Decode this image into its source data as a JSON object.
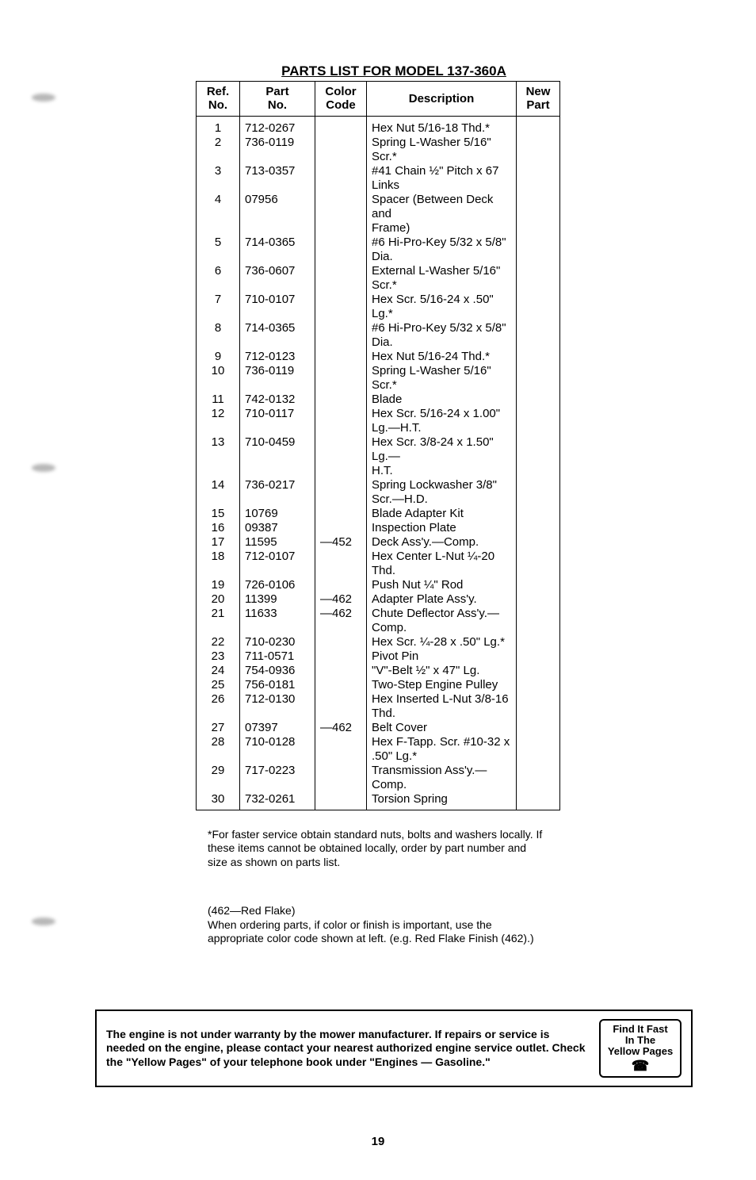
{
  "title": "PARTS LIST FOR MODEL 137-360A",
  "columns": {
    "ref": "Ref.\nNo.",
    "part": "Part\nNo.",
    "color": "Color\nCode",
    "desc": "Description",
    "new": "New\nPart"
  },
  "rows": [
    {
      "ref": "1",
      "part": "712-0267",
      "color": "",
      "desc": "Hex Nut 5/16-18 Thd.*"
    },
    {
      "ref": "2",
      "part": "736-0119",
      "color": "",
      "desc": "Spring L-Washer 5/16\" Scr.*"
    },
    {
      "ref": "3",
      "part": "713-0357",
      "color": "",
      "desc": "#41 Chain ½\" Pitch x 67 Links"
    },
    {
      "ref": "4",
      "part": "07956",
      "color": "",
      "desc": "Spacer (Between Deck and",
      "cont": "Frame)"
    },
    {
      "ref": "5",
      "part": "714-0365",
      "color": "",
      "desc": "#6 Hi-Pro-Key 5/32 x 5/8\"",
      "cont": "Dia."
    },
    {
      "ref": "6",
      "part": "736-0607",
      "color": "",
      "desc": "External L-Washer 5/16\"",
      "cont": "Scr.*"
    },
    {
      "ref": "7",
      "part": "710-0107",
      "color": "",
      "desc": "Hex Scr. 5/16-24 x .50\" Lg.*"
    },
    {
      "ref": "8",
      "part": "714-0365",
      "color": "",
      "desc": "#6 Hi-Pro-Key 5/32 x 5/8\"",
      "cont": "Dia."
    },
    {
      "ref": "9",
      "part": "712-0123",
      "color": "",
      "desc": "Hex Nut 5/16-24 Thd.*"
    },
    {
      "ref": "10",
      "part": "736-0119",
      "color": "",
      "desc": "Spring L-Washer 5/16\" Scr.*"
    },
    {
      "ref": "11",
      "part": "742-0132",
      "color": "",
      "desc": "Blade"
    },
    {
      "ref": "12",
      "part": "710-0117",
      "color": "",
      "desc": "Hex Scr. 5/16-24 x 1.00\"",
      "cont": "Lg.—H.T."
    },
    {
      "ref": "13",
      "part": "710-0459",
      "color": "",
      "desc": "Hex Scr. 3/8-24 x 1.50\" Lg.—",
      "cont": "H.T."
    },
    {
      "ref": "14",
      "part": "736-0217",
      "color": "",
      "desc": "Spring Lockwasher 3/8\"",
      "cont": "Scr.—H.D."
    },
    {
      "ref": "15",
      "part": "10769",
      "color": "",
      "desc": "Blade Adapter Kit"
    },
    {
      "ref": "16",
      "part": "09387",
      "color": "",
      "desc": "Inspection Plate"
    },
    {
      "ref": "17",
      "part": "11595",
      "color": "—452",
      "desc": "Deck Ass'y.—Comp."
    },
    {
      "ref": "18",
      "part": "712-0107",
      "color": "",
      "desc": "Hex Center L-Nut ¼-20 Thd."
    },
    {
      "ref": "19",
      "part": "726-0106",
      "color": "",
      "desc": "Push Nut ¼\" Rod"
    },
    {
      "ref": "20",
      "part": "11399",
      "color": "—462",
      "desc": "Adapter Plate Ass'y."
    },
    {
      "ref": "21",
      "part": "11633",
      "color": "—462",
      "desc": "Chute Deflector Ass'y.—",
      "cont": "Comp."
    },
    {
      "ref": "22",
      "part": "710-0230",
      "color": "",
      "desc": "Hex Scr. ¼-28 x .50\" Lg.*"
    },
    {
      "ref": "23",
      "part": "711-0571",
      "color": "",
      "desc": "Pivot Pin"
    },
    {
      "ref": "24",
      "part": "754-0936",
      "color": "",
      "desc": "\"V\"-Belt ½\" x 47\" Lg."
    },
    {
      "ref": "25",
      "part": "756-0181",
      "color": "",
      "desc": "Two-Step Engine Pulley"
    },
    {
      "ref": "26",
      "part": "712-0130",
      "color": "",
      "desc": "Hex Inserted L-Nut 3/8-16",
      "cont": "Thd."
    },
    {
      "ref": "27",
      "part": "07397",
      "color": "—462",
      "desc": "Belt Cover"
    },
    {
      "ref": "28",
      "part": "710-0128",
      "color": "",
      "desc": "Hex F-Tapp. Scr. #10-32 x",
      "cont": ".50\" Lg.*"
    },
    {
      "ref": "29",
      "part": "717-0223",
      "color": "",
      "desc": "Transmission Ass'y.—Comp."
    },
    {
      "ref": "30",
      "part": "732-0261",
      "color": "",
      "desc": "Torsion Spring"
    }
  ],
  "footnote1": "*For faster service obtain standard nuts, bolts and washers locally. If these items cannot be obtained locally, order by part number and size as shown on parts list.",
  "footnote2a": "(462—Red Flake)",
  "footnote2b": "When ordering parts, if color or finish is important, use the appropriate color code shown at left. (e.g. Red Flake Finish (462).)",
  "warranty": "The engine is not under warranty by the mower manufacturer. If repairs or service is needed on the engine, please contact your nearest authorized engine service outlet. Check the \"Yellow Pages\" of your telephone book under \"Engines — Gasoline.\"",
  "findit": {
    "l1": "Find It Fast",
    "l2": "In The",
    "l3": "Yellow Pages"
  },
  "page_number": "19"
}
